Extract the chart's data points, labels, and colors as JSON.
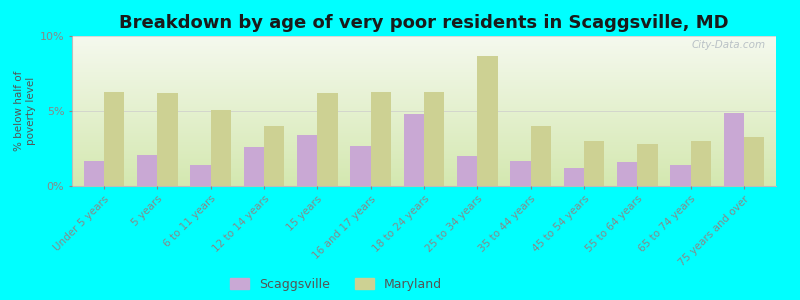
{
  "title": "Breakdown by age of very poor residents in Scaggsville, MD",
  "ylabel": "% below half of\npoverty level",
  "categories": [
    "Under 5 years",
    "5 years",
    "6 to 11 years",
    "12 to 14 years",
    "15 years",
    "16 and 17 years",
    "18 to 24 years",
    "25 to 34 years",
    "35 to 44 years",
    "45 to 54 years",
    "55 to 64 years",
    "65 to 74 years",
    "75 years and over"
  ],
  "scaggsville": [
    1.7,
    2.1,
    1.4,
    2.6,
    3.4,
    2.7,
    4.8,
    2.0,
    1.7,
    1.2,
    1.6,
    1.4,
    4.9
  ],
  "maryland": [
    6.3,
    6.2,
    5.1,
    4.0,
    6.2,
    6.3,
    6.3,
    8.7,
    4.0,
    3.0,
    2.8,
    3.0,
    3.3
  ],
  "scaggsville_color": "#c9a8d4",
  "maryland_color": "#cdd193",
  "background_color": "#00ffff",
  "ylim": [
    0,
    10
  ],
  "yticks": [
    0,
    5,
    10
  ],
  "ytick_labels": [
    "0%",
    "5%",
    "10%"
  ],
  "title_fontsize": 13,
  "watermark": "City-Data.com"
}
